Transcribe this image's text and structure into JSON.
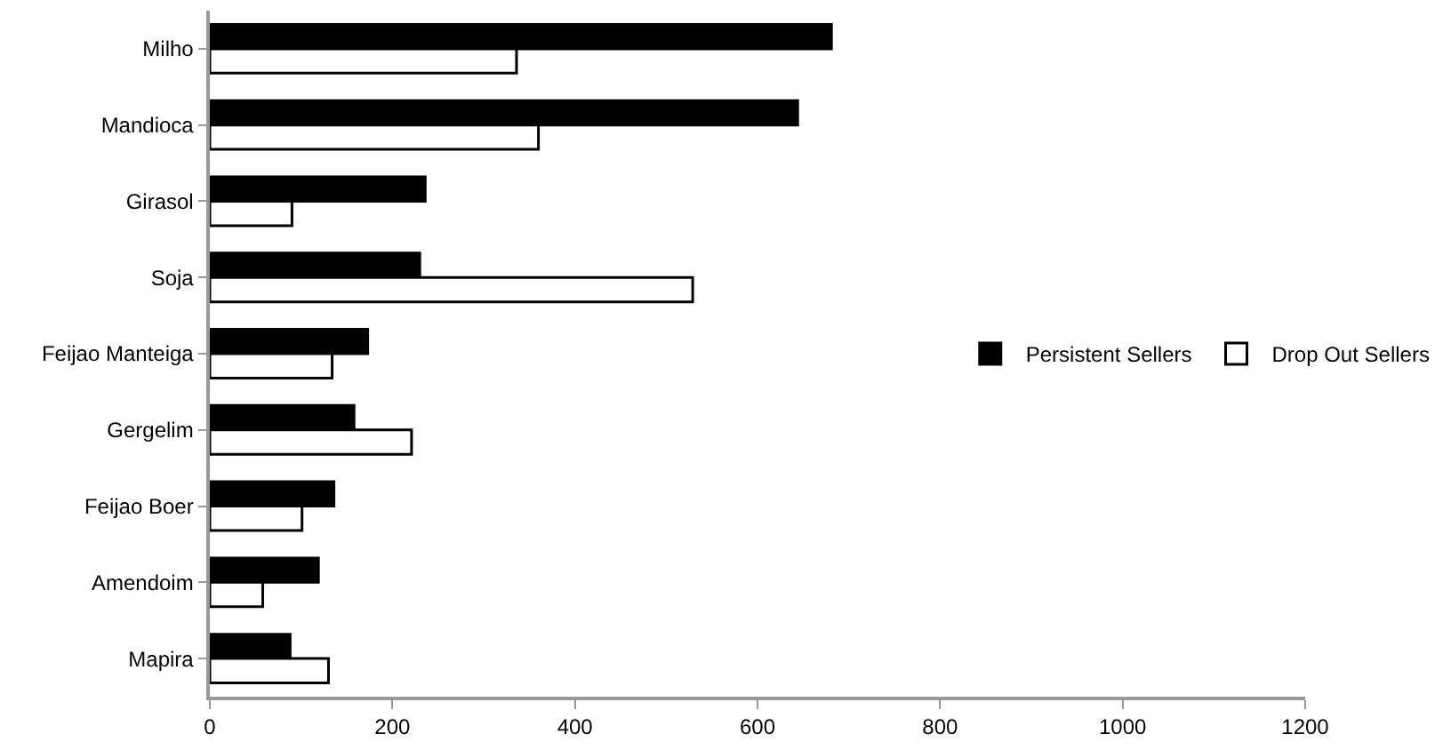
{
  "chart_data": {
    "type": "bar",
    "orientation": "horizontal",
    "categories": [
      "Milho",
      "Mandioca",
      "Girasol",
      "Soja",
      "Feijao Manteiga",
      "Gergelim",
      "Feijao Boer",
      "Amendoim",
      "Mapira"
    ],
    "series": [
      {
        "name": "Persistent Sellers",
        "color": "#000000",
        "values": [
          681,
          644,
          236,
          230,
          173,
          158,
          136,
          119,
          88
        ]
      },
      {
        "name": "Drop Out Sellers",
        "color": "#ffffff",
        "values": [
          336,
          360,
          90,
          529,
          134,
          221,
          101,
          58,
          130
        ]
      }
    ],
    "xlim": [
      0,
      1200
    ],
    "xticks": [
      0,
      200,
      400,
      600,
      800,
      1000,
      1200
    ],
    "grid": false,
    "legend": "right"
  }
}
